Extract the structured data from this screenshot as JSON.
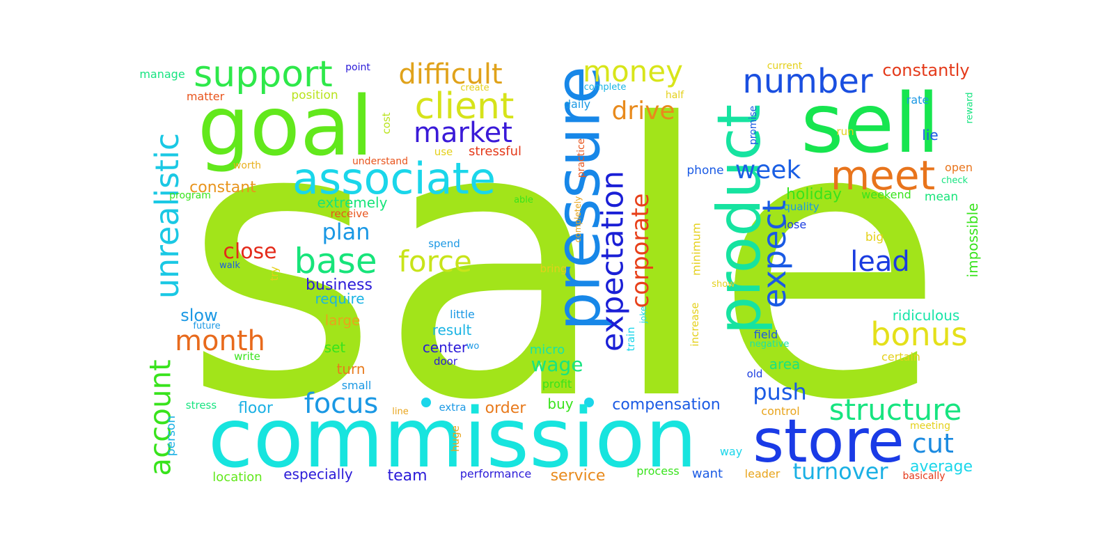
{
  "words": [
    {
      "text": "sale",
      "color": "#a2e41a"
    },
    {
      "text": "commission",
      "color": "#17e4de"
    },
    {
      "text": "goal",
      "color": "#62e81c"
    },
    {
      "text": "sell",
      "color": "#17e54f"
    },
    {
      "text": "product",
      "color": "#16e3a0"
    },
    {
      "text": "pressure",
      "color": "#1787e8"
    },
    {
      "text": "store",
      "color": "#1a3be6"
    },
    {
      "text": "associate",
      "color": "#1ad6ea"
    },
    {
      "text": "meet",
      "color": "#e8741c"
    },
    {
      "text": "support",
      "color": "#2ee84a"
    },
    {
      "text": "client",
      "color": "#d6e31a"
    },
    {
      "text": "unrealistic",
      "color": "#1ac8e4"
    },
    {
      "text": "expectation",
      "color": "#1a1fd6"
    },
    {
      "text": "account",
      "color": "#38e31c"
    },
    {
      "text": "base",
      "color": "#17e47a"
    },
    {
      "text": "number",
      "color": "#1a4fe0"
    },
    {
      "text": "difficult",
      "color": "#e0a21a"
    },
    {
      "text": "money",
      "color": "#d8e51a"
    },
    {
      "text": "bonus",
      "color": "#e4e01a"
    },
    {
      "text": "expect",
      "color": "#1a5ae4"
    },
    {
      "text": "structure",
      "color": "#17e480"
    },
    {
      "text": "month",
      "color": "#e86a1c"
    },
    {
      "text": "force",
      "color": "#c8e41a"
    },
    {
      "text": "market",
      "color": "#3a1ad8"
    },
    {
      "text": "corporate",
      "color": "#e8401a"
    },
    {
      "text": "drive",
      "color": "#e88a1c"
    },
    {
      "text": "focus",
      "color": "#1a98e4"
    },
    {
      "text": "lead",
      "color": "#1a3ce0"
    },
    {
      "text": "week",
      "color": "#1a5fe4"
    },
    {
      "text": "cut",
      "color": "#1a8ae0"
    },
    {
      "text": "close",
      "color": "#e42a1a"
    },
    {
      "text": "plan",
      "color": "#1a98e4"
    },
    {
      "text": "push",
      "color": "#1a5ae4"
    },
    {
      "text": "turnover",
      "color": "#1ab0e4"
    },
    {
      "text": "wage",
      "color": "#17e480"
    },
    {
      "text": "constantly",
      "color": "#e43a1a"
    },
    {
      "text": "business",
      "color": "#2a1ad8"
    },
    {
      "text": "compensation",
      "color": "#1a5ae4"
    },
    {
      "text": "constant",
      "color": "#e8941c"
    },
    {
      "text": "team",
      "color": "#2a1ad8"
    },
    {
      "text": "average",
      "color": "#1ad6ea"
    },
    {
      "text": "slow",
      "color": "#1a98e4"
    },
    {
      "text": "require",
      "color": "#1ab4e4"
    },
    {
      "text": "large",
      "color": "#e8a41c"
    },
    {
      "text": "floor",
      "color": "#1ab0e4"
    },
    {
      "text": "holiday",
      "color": "#38e31c"
    },
    {
      "text": "order",
      "color": "#e87a1c"
    },
    {
      "text": "service",
      "color": "#e88a1c"
    },
    {
      "text": "area",
      "color": "#17e480"
    },
    {
      "text": "ridiculous",
      "color": "#17e4a8"
    },
    {
      "text": "extremely",
      "color": "#17e47a"
    },
    {
      "text": "impossible",
      "color": "#38e31c"
    },
    {
      "text": "especially",
      "color": "#2a1ad8"
    },
    {
      "text": "result",
      "color": "#1ab4e4"
    },
    {
      "text": "center",
      "color": "#2a1ad8"
    },
    {
      "text": "turn",
      "color": "#e87a1c"
    },
    {
      "text": "set",
      "color": "#38e31c"
    },
    {
      "text": "buy",
      "color": "#38e31c"
    },
    {
      "text": "phone",
      "color": "#1a5ae4"
    },
    {
      "text": "lie",
      "color": "#1a5ae4"
    },
    {
      "text": "stressful",
      "color": "#e43a1a"
    },
    {
      "text": "micro",
      "color": "#17e4a8"
    },
    {
      "text": "minimum",
      "color": "#e4d01a"
    },
    {
      "text": "mean",
      "color": "#17e47a"
    },
    {
      "text": "weekend",
      "color": "#38e31c"
    },
    {
      "text": "open",
      "color": "#e8741c"
    },
    {
      "text": "little",
      "color": "#1a98e4"
    },
    {
      "text": "field",
      "color": "#1a5ae4"
    },
    {
      "text": "location",
      "color": "#62e81c"
    },
    {
      "text": "performance",
      "color": "#2a1ad8"
    },
    {
      "text": "want",
      "color": "#1a5ae4"
    },
    {
      "text": "small",
      "color": "#1a98e4"
    },
    {
      "text": "profit",
      "color": "#38e31c"
    },
    {
      "text": "quality",
      "color": "#1a98e4"
    },
    {
      "text": "lose",
      "color": "#1a3ce0"
    },
    {
      "text": "rate",
      "color": "#1a98e4"
    },
    {
      "text": "certain",
      "color": "#e4d01a"
    },
    {
      "text": "leader",
      "color": "#e8a41c"
    },
    {
      "text": "control",
      "color": "#e8a41c"
    },
    {
      "text": "process",
      "color": "#38e31c"
    },
    {
      "text": "stress",
      "color": "#17e480"
    },
    {
      "text": "person",
      "color": "#1ab0e4"
    },
    {
      "text": "write",
      "color": "#38e31c"
    },
    {
      "text": "position",
      "color": "#b8e31a"
    },
    {
      "text": "matter",
      "color": "#e8541c"
    },
    {
      "text": "manage",
      "color": "#17e480"
    },
    {
      "text": "point",
      "color": "#2a1ad8"
    },
    {
      "text": "program",
      "color": "#38e31c"
    },
    {
      "text": "worth",
      "color": "#e8b01c"
    },
    {
      "text": "receive",
      "color": "#e8541c"
    },
    {
      "text": "understand",
      "color": "#e8541c"
    },
    {
      "text": "use",
      "color": "#e4d01a"
    },
    {
      "text": "cost",
      "color": "#b8e31a"
    },
    {
      "text": "create",
      "color": "#e4d01a"
    },
    {
      "text": "complete",
      "color": "#1ab4e4"
    },
    {
      "text": "daily",
      "color": "#1a98e4"
    },
    {
      "text": "half",
      "color": "#e4d01a"
    },
    {
      "text": "current",
      "color": "#e4d01a"
    },
    {
      "text": "promise",
      "color": "#1a5ae4"
    },
    {
      "text": "run",
      "color": "#e4d01a"
    },
    {
      "text": "reward",
      "color": "#17e480"
    },
    {
      "text": "check",
      "color": "#17e480"
    },
    {
      "text": "practice",
      "color": "#e8541c"
    },
    {
      "text": "completely",
      "color": "#e8a41c"
    },
    {
      "text": "able",
      "color": "#38e31c"
    },
    {
      "text": "spend",
      "color": "#1a98e4"
    },
    {
      "text": "walk",
      "color": "#1a5ae4"
    },
    {
      "text": "try",
      "color": "#e4d01a"
    },
    {
      "text": "bring",
      "color": "#e4d01a"
    },
    {
      "text": "big",
      "color": "#e4d01a"
    },
    {
      "text": "show",
      "color": "#e4d01a"
    },
    {
      "text": "increase",
      "color": "#e4d01a"
    },
    {
      "text": "joke",
      "color": "#1ad6ea"
    },
    {
      "text": "train",
      "color": "#1ad6ea"
    },
    {
      "text": "future",
      "color": "#1a98e4"
    },
    {
      "text": "wo",
      "color": "#1a98e4"
    },
    {
      "text": "door",
      "color": "#2a1ad8"
    },
    {
      "text": "negative",
      "color": "#17e4a8"
    },
    {
      "text": "old",
      "color": "#1a3ce0"
    },
    {
      "text": "extra",
      "color": "#1a98e4"
    },
    {
      "text": "line",
      "color": "#e8a41c"
    },
    {
      "text": "huge",
      "color": "#e8a41c"
    },
    {
      "text": "way",
      "color": "#1ad6ea"
    },
    {
      "text": "meeting",
      "color": "#e4d01a"
    },
    {
      "text": "basically",
      "color": "#e43a1a"
    }
  ]
}
